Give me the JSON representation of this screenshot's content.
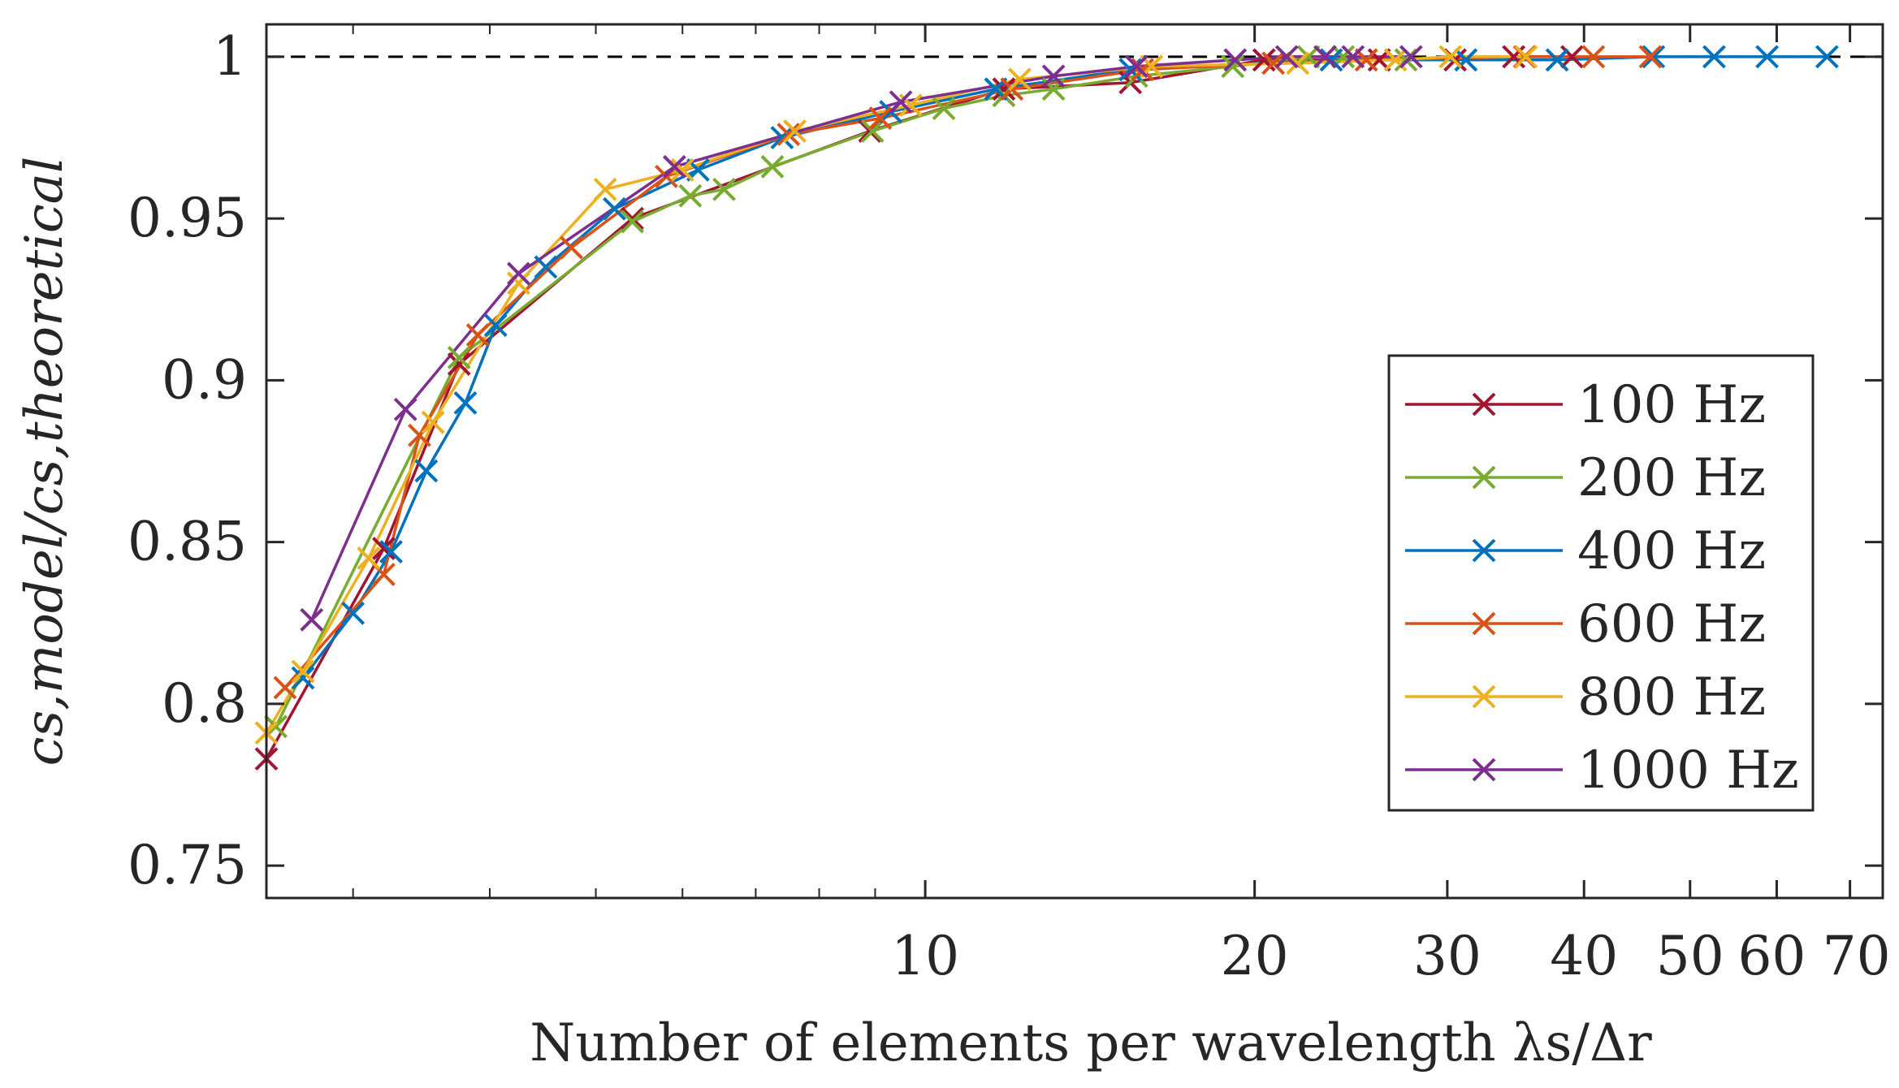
{
  "chart_data": {
    "type": "line",
    "xlabel": "Number of elements per wavelength λs/Δr",
    "ylabel": "cs,model/cs,theoretical",
    "xscale": "log",
    "xlim": [
      2.5,
      75
    ],
    "ylim": [
      0.74,
      1.01
    ],
    "xticks": [
      10,
      20,
      30,
      40,
      50,
      60,
      70
    ],
    "xtick_labels": [
      "10",
      "20",
      "30",
      "40",
      "50",
      "60",
      "70"
    ],
    "yticks": [
      0.75,
      0.8,
      0.85,
      0.9,
      0.95,
      1
    ],
    "ytick_labels": [
      "0.75",
      "0.8",
      "0.85",
      "0.9",
      "0.95",
      "1"
    ],
    "reference_line": {
      "y": 1,
      "style": "dashed",
      "color": "#000000"
    },
    "grid": false,
    "legend_position": "right",
    "series": [
      {
        "name": "100 Hz",
        "color": "#A2142F",
        "marker": "x",
        "points": [
          [
            2.5,
            0.783
          ],
          [
            3.2,
            0.848
          ],
          [
            3.75,
            0.905
          ],
          [
            5.4,
            0.95
          ],
          [
            8.9,
            0.977
          ],
          [
            11.8,
            0.99
          ],
          [
            15.4,
            0.992
          ],
          [
            20.4,
            0.999
          ],
          [
            26,
            0.999
          ],
          [
            30.5,
            0.999
          ],
          [
            34.5,
            1.0
          ],
          [
            39,
            1.0
          ]
        ]
      },
      {
        "name": "200 Hz",
        "color": "#77AC30",
        "marker": "x",
        "points": [
          [
            2.55,
            0.793
          ],
          [
            3.75,
            0.907
          ],
          [
            5.4,
            0.949
          ],
          [
            6.1,
            0.957
          ],
          [
            6.55,
            0.959
          ],
          [
            7.25,
            0.966
          ],
          [
            8.95,
            0.977
          ],
          [
            10.4,
            0.984
          ],
          [
            11.8,
            0.988
          ],
          [
            13.1,
            0.99
          ],
          [
            15.6,
            0.994
          ],
          [
            19.1,
            0.997
          ],
          [
            22.4,
            1.0
          ],
          [
            24.1,
            1.0
          ],
          [
            27.5,
            0.999
          ]
        ]
      },
      {
        "name": "400 Hz",
        "color": "#0072BD",
        "marker": "x",
        "points": [
          [
            2.7,
            0.808
          ],
          [
            3.0,
            0.828
          ],
          [
            3.25,
            0.847
          ],
          [
            3.5,
            0.872
          ],
          [
            3.8,
            0.893
          ],
          [
            4.05,
            0.917
          ],
          [
            4.5,
            0.935
          ],
          [
            5.2,
            0.953
          ],
          [
            6.2,
            0.965
          ],
          [
            7.4,
            0.975
          ],
          [
            9.3,
            0.983
          ],
          [
            11.6,
            0.99
          ],
          [
            15.4,
            0.996
          ],
          [
            23.5,
            0.999
          ],
          [
            31.2,
            0.999
          ],
          [
            37.8,
            0.999
          ],
          [
            46.3,
            1.0
          ],
          [
            52.6,
            1.0
          ],
          [
            58.8,
            1.0
          ],
          [
            66.7,
            1.0
          ]
        ]
      },
      {
        "name": "600 Hz",
        "color": "#D95319",
        "marker": "x",
        "points": [
          [
            2.6,
            0.805
          ],
          [
            3.2,
            0.84
          ],
          [
            3.45,
            0.883
          ],
          [
            3.9,
            0.914
          ],
          [
            4.75,
            0.941
          ],
          [
            5.8,
            0.963
          ],
          [
            7.5,
            0.976
          ],
          [
            9.1,
            0.981
          ],
          [
            12.0,
            0.99
          ],
          [
            15.8,
            0.996
          ],
          [
            20.8,
            0.998
          ],
          [
            25.3,
            0.999
          ],
          [
            35.3,
            1.0
          ],
          [
            40.8,
            1.0
          ],
          [
            46.0,
            1.0
          ]
        ]
      },
      {
        "name": "800 Hz",
        "color": "#EDB120",
        "marker": "x",
        "points": [
          [
            2.5,
            0.791
          ],
          [
            2.7,
            0.81
          ],
          [
            3.1,
            0.845
          ],
          [
            3.55,
            0.887
          ],
          [
            4.25,
            0.93
          ],
          [
            5.1,
            0.959
          ],
          [
            6.0,
            0.965
          ],
          [
            7.6,
            0.977
          ],
          [
            9.7,
            0.985
          ],
          [
            12.2,
            0.993
          ],
          [
            16.1,
            0.997
          ],
          [
            21.9,
            0.998
          ],
          [
            26.9,
            0.999
          ],
          [
            30.2,
            1.0
          ],
          [
            35.4,
            1.0
          ]
        ]
      },
      {
        "name": "1000 Hz",
        "color": "#7E2F8E",
        "marker": "x",
        "points": [
          [
            2.75,
            0.826
          ],
          [
            3.35,
            0.891
          ],
          [
            4.25,
            0.933
          ],
          [
            5.9,
            0.966
          ],
          [
            9.5,
            0.986
          ],
          [
            13.1,
            0.994
          ],
          [
            15.6,
            0.997
          ],
          [
            19.2,
            0.999
          ],
          [
            21.4,
            1.0
          ],
          [
            23.2,
            1.0
          ],
          [
            24.6,
            1.0
          ],
          [
            27.8,
            1.0
          ]
        ]
      }
    ]
  }
}
